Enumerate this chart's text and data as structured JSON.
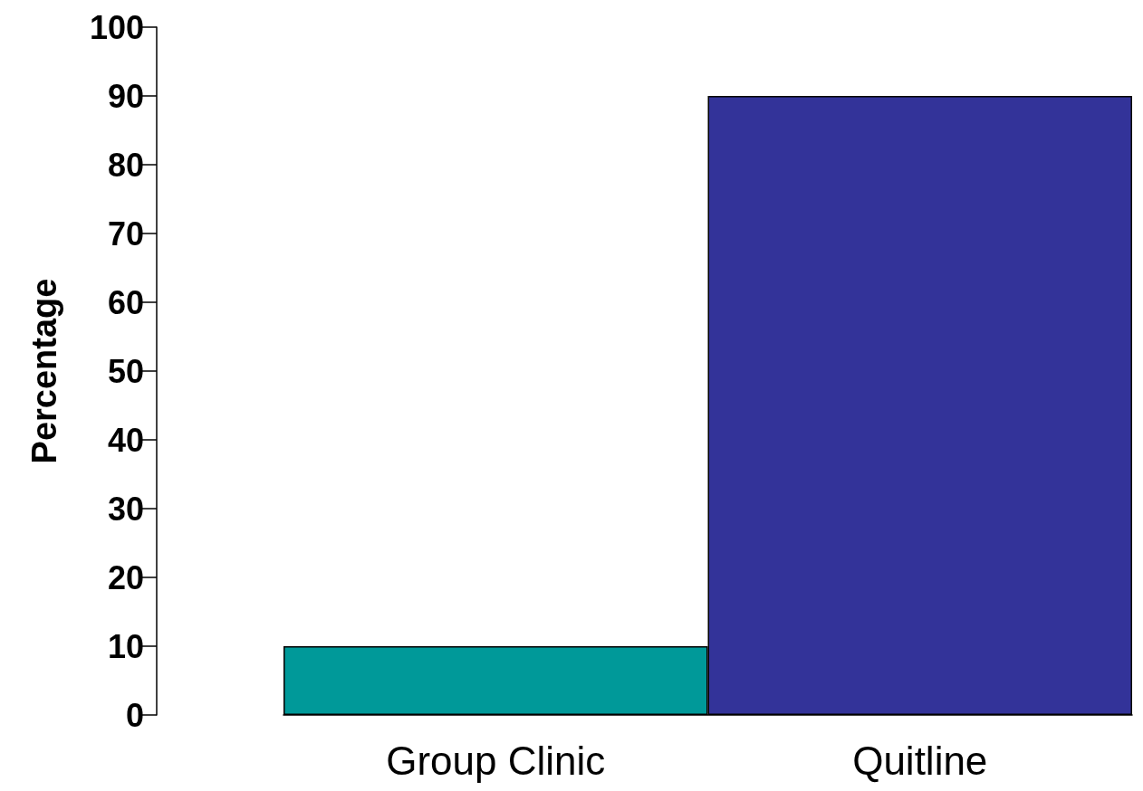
{
  "chart_data": {
    "type": "bar",
    "ylabel": "Percentage",
    "categories": [
      "Group Clinic",
      "Quitline"
    ],
    "values": [
      10,
      90
    ],
    "colors": [
      "#009999",
      "#333399"
    ],
    "ylim": [
      0,
      100
    ],
    "yticks": [
      0,
      10,
      20,
      30,
      40,
      50,
      60,
      70,
      80,
      90,
      100
    ],
    "grid": false
  }
}
